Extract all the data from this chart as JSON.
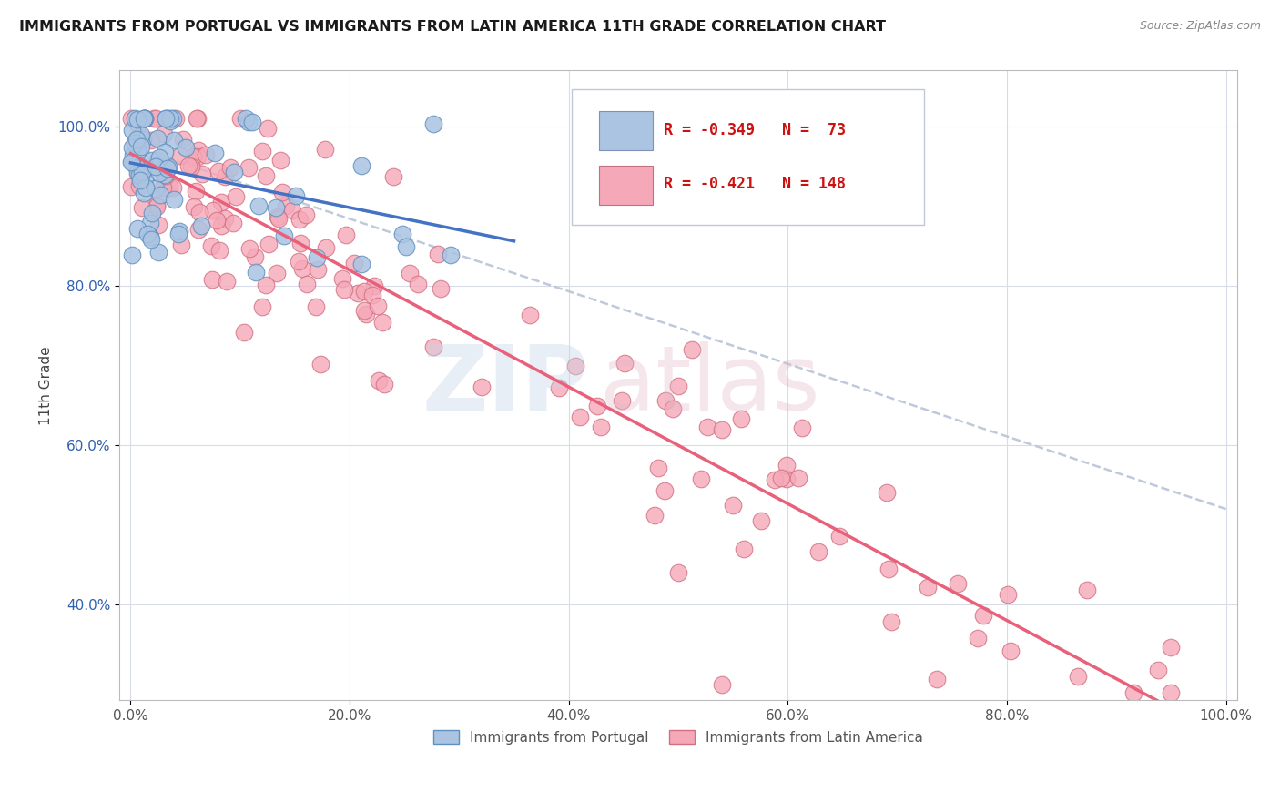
{
  "title": "IMMIGRANTS FROM PORTUGAL VS IMMIGRANTS FROM LATIN AMERICA 11TH GRADE CORRELATION CHART",
  "source": "Source: ZipAtlas.com",
  "ylabel": "11th Grade",
  "xlim": [
    -0.01,
    1.01
  ],
  "ylim": [
    0.28,
    1.07
  ],
  "x_ticks": [
    0.0,
    0.2,
    0.4,
    0.6,
    0.8,
    1.0
  ],
  "x_tick_labels": [
    "0.0%",
    "20.0%",
    "40.0%",
    "60.0%",
    "80.0%",
    "100.0%"
  ],
  "y_ticks": [
    0.4,
    0.6,
    0.8,
    1.0
  ],
  "y_tick_labels": [
    "40.0%",
    "60.0%",
    "80.0%",
    "100.0%"
  ],
  "legend_labels": [
    "Immigrants from Portugal",
    "Immigrants from Latin America"
  ],
  "R_portugal": -0.349,
  "N_portugal": 73,
  "R_latin": -0.421,
  "N_latin": 148,
  "blue_color": "#aac4e2",
  "pink_color": "#f5a8b8",
  "blue_line_color": "#4472c4",
  "pink_line_color": "#e8607a",
  "dashed_line_color": "#b8c4d8",
  "blue_edge_color": "#6090c0",
  "pink_edge_color": "#d07080"
}
